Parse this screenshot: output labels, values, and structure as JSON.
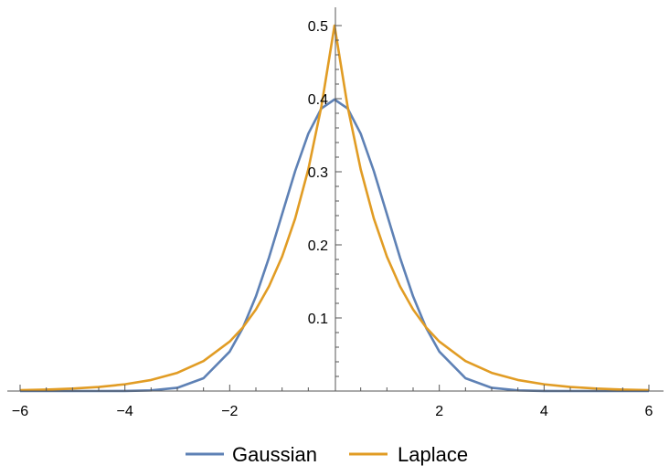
{
  "chart_data": {
    "type": "line",
    "title": "",
    "xlabel": "",
    "ylabel": "",
    "xlim": [
      -6,
      6
    ],
    "ylim": [
      0,
      0.5
    ],
    "grid": false,
    "legend_position": "bottom",
    "x_ticks": [
      -6,
      -4,
      -2,
      2,
      4,
      6
    ],
    "x_tick_labels": [
      "−6",
      "−4",
      "−2",
      "2",
      "4",
      "6"
    ],
    "y_ticks": [
      0.1,
      0.2,
      0.3,
      0.4,
      0.5
    ],
    "y_tick_labels": [
      "0.1",
      "0.2",
      "0.3",
      "0.4",
      "0.5"
    ],
    "x": [
      -6,
      -5.5,
      -5,
      -4.5,
      -4,
      -3.5,
      -3,
      -2.5,
      -2,
      -1.75,
      -1.5,
      -1.25,
      -1,
      -0.75,
      -0.5,
      -0.25,
      0,
      0.25,
      0.5,
      0.75,
      1,
      1.25,
      1.5,
      1.75,
      2,
      2.5,
      3,
      3.5,
      4,
      4.5,
      5,
      5.5,
      6
    ],
    "series": [
      {
        "name": "Gaussian",
        "color": "#5e81b5",
        "values": [
          0.0,
          0.0,
          0.0,
          0.0,
          0.0001,
          0.0009,
          0.0044,
          0.0175,
          0.054,
          0.0863,
          0.1295,
          0.1826,
          0.242,
          0.3011,
          0.3521,
          0.3867,
          0.3989,
          0.3867,
          0.3521,
          0.3011,
          0.242,
          0.1826,
          0.1295,
          0.0863,
          0.054,
          0.0175,
          0.0044,
          0.0009,
          0.0001,
          0.0,
          0.0,
          0.0,
          0.0
        ]
      },
      {
        "name": "Laplace",
        "color": "#e19c24",
        "values": [
          0.0012,
          0.002,
          0.0034,
          0.0056,
          0.0092,
          0.0151,
          0.0249,
          0.041,
          0.0677,
          0.0869,
          0.1116,
          0.1433,
          0.1839,
          0.2362,
          0.3033,
          0.3894,
          0.5,
          0.3894,
          0.3033,
          0.2362,
          0.1839,
          0.1433,
          0.1116,
          0.0869,
          0.0677,
          0.041,
          0.0249,
          0.0151,
          0.0092,
          0.0056,
          0.0034,
          0.002,
          0.0012
        ]
      }
    ]
  }
}
